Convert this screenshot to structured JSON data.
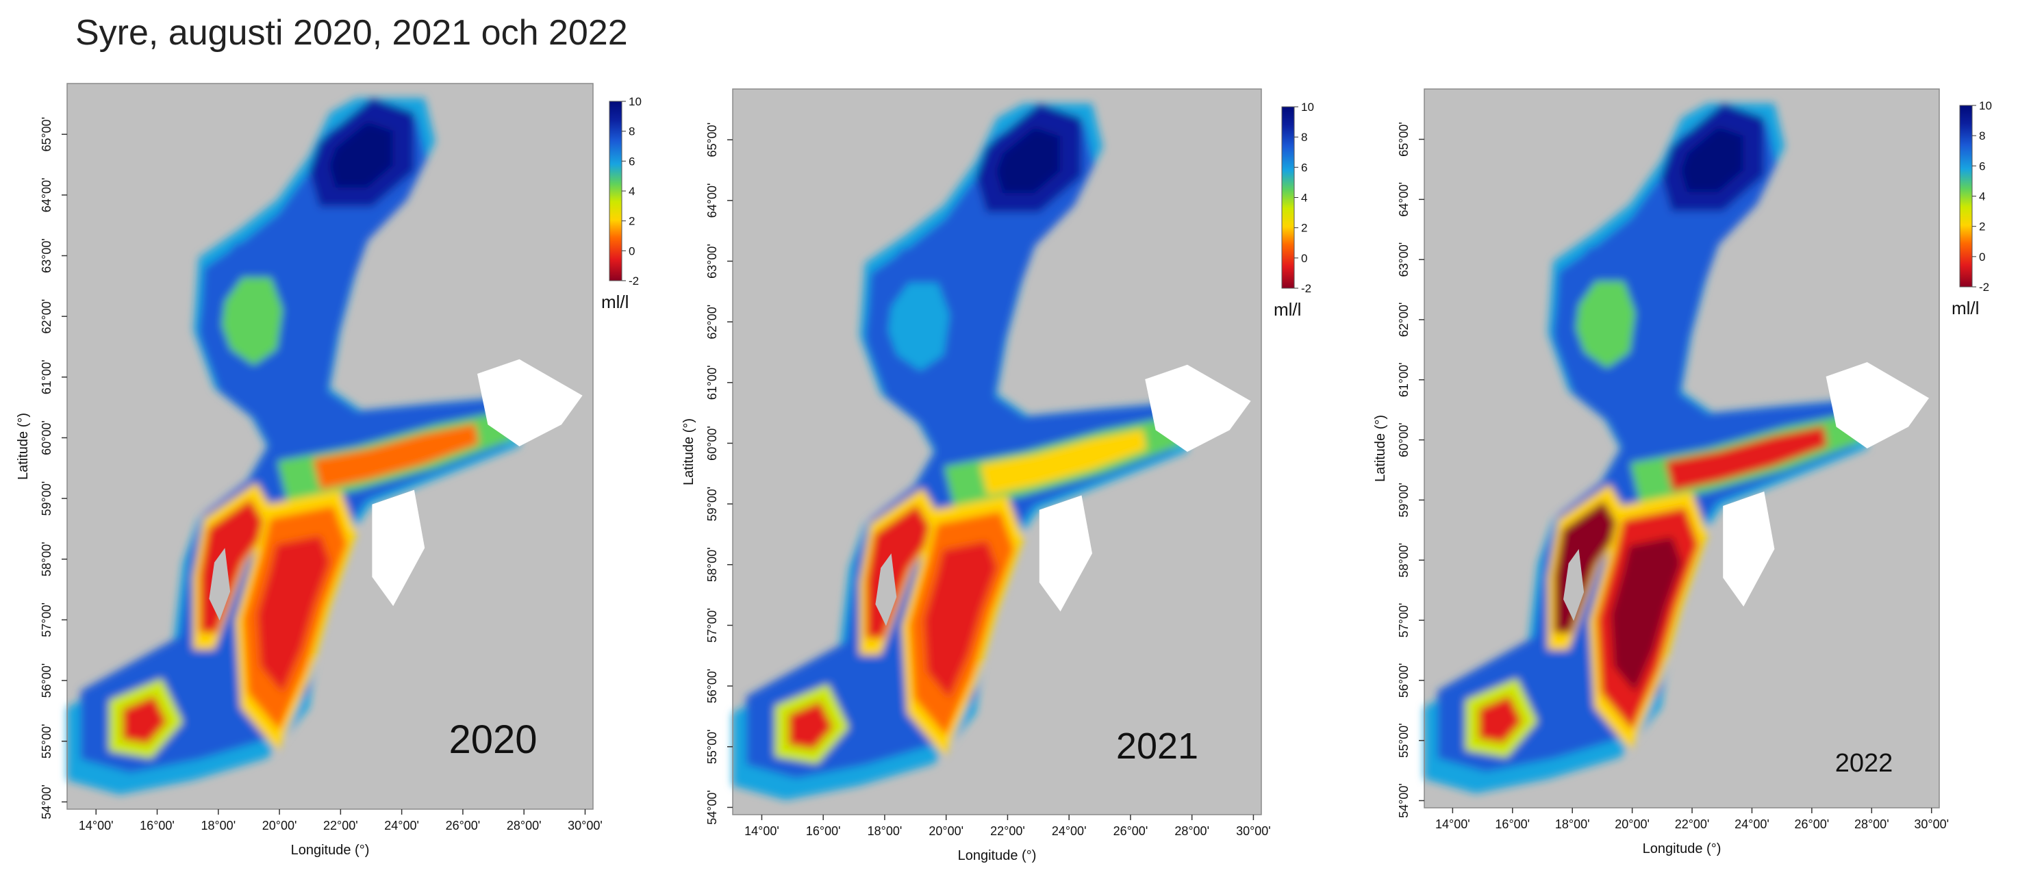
{
  "title": "Syre, augusti 2020, 2021 och 2022",
  "colors": {
    "land": "#c0c0c0",
    "lakes": "#ffffff",
    "plot_border": "#8a8a8a",
    "scale": [
      "#8b0020",
      "#e41a1c",
      "#ff6a00",
      "#ffd400",
      "#cde800",
      "#5fd15c",
      "#18a4e0",
      "#1a5ad6",
      "#0b1f9e",
      "#000a7a"
    ]
  },
  "colorbar": {
    "unit": "ml/l",
    "ticks": [
      "10",
      "8",
      "6",
      "4",
      "2",
      "0",
      "-2"
    ]
  },
  "axes": {
    "x_title": "Longitude (°)",
    "y_title": "Latitude (°)",
    "x_ticks": [
      "14°00'",
      "16°00'",
      "18°00'",
      "20°00'",
      "22°00'",
      "24°00'",
      "26°00'",
      "28°00'",
      "30°00'"
    ],
    "y_ticks": [
      "65°00'",
      "64°00'",
      "63°00'",
      "62°00'",
      "61°00'",
      "60°00'",
      "59°00'",
      "58°00'",
      "57°00'",
      "56°00'",
      "55°00'",
      "54°00'"
    ]
  },
  "panels": [
    {
      "year": "2020",
      "value_range": [
        -2,
        10
      ]
    },
    {
      "year": "2021",
      "value_range": [
        -2,
        10
      ]
    },
    {
      "year": "2022",
      "value_range": [
        -2,
        10
      ]
    }
  ]
}
